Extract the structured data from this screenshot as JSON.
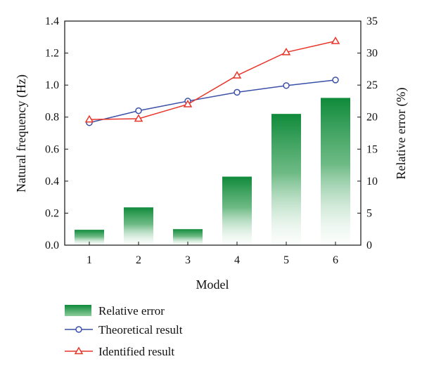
{
  "chart_data": {
    "type": "bar+line",
    "categories": [
      "1",
      "2",
      "3",
      "4",
      "5",
      "6"
    ],
    "xlabel": "Model",
    "ylabel_left": "Natural frequency (Hz)",
    "ylabel_right": "Relative error (%)",
    "ylim_left": [
      0,
      1.4
    ],
    "yticks_left": [
      "0.0",
      "0.2",
      "0.4",
      "0.6",
      "0.8",
      "1.0",
      "1.2",
      "1.4"
    ],
    "ylim_right": [
      0,
      35
    ],
    "yticks_right": [
      "0",
      "5",
      "10",
      "15",
      "20",
      "25",
      "30",
      "35"
    ],
    "grid": false,
    "legend_position": "bottom",
    "bars": {
      "name": "Relative error",
      "axis": "right",
      "color": "#1a8a3c",
      "values": [
        2.4,
        5.9,
        2.5,
        10.7,
        20.5,
        23.0
      ]
    },
    "series": [
      {
        "name": "Theoretical result",
        "axis": "left",
        "marker": "circle",
        "color": "#3a4fa8",
        "values": [
          0.765,
          0.84,
          0.9,
          0.955,
          0.997,
          1.032
        ]
      },
      {
        "name": "Identified result",
        "axis": "left",
        "marker": "triangle",
        "color": "#e8352a",
        "values": [
          0.785,
          0.79,
          0.88,
          1.06,
          1.205,
          1.275
        ]
      }
    ]
  }
}
